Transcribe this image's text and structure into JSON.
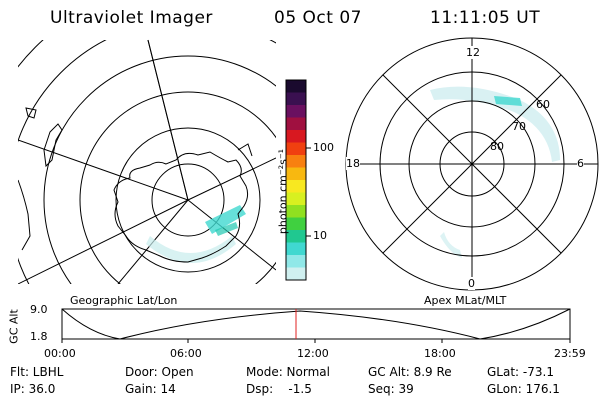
{
  "header": {
    "instrument": "Ultraviolet Imager",
    "date": "05 Oct 07",
    "time": "11:11:05 UT"
  },
  "left_panel": {
    "label": "Geographic Lat/Lon"
  },
  "right_panel": {
    "label": "Apex MLat/MLT",
    "mlt_labels": [
      "12",
      "18",
      "6",
      "0"
    ],
    "mlat_labels": [
      "60",
      "70",
      "80"
    ]
  },
  "colorbar": {
    "label": "photon cm⁻²s⁻¹",
    "ticks": [
      "100",
      "10"
    ],
    "colors_top_to_bottom": [
      "#1a0a2e",
      "#3a1050",
      "#6a1060",
      "#a01040",
      "#d81820",
      "#f04010",
      "#f88010",
      "#f8b810",
      "#f8e820",
      "#d8f020",
      "#90e020",
      "#40d040",
      "#20c890",
      "#40d8d0",
      "#90e8e8",
      "#d0f0f0"
    ]
  },
  "altitude_plot": {
    "y_label": "GC Alt",
    "y_ticks": [
      "9.0",
      "1.8"
    ],
    "x_ticks": [
      "00:00",
      "06:00",
      "12:00",
      "18:00",
      "23:59"
    ],
    "marker_color": "#e02020"
  },
  "status": {
    "filter": "Flt: LBHL",
    "ip": "IP: 36.0",
    "door": "Door: Open",
    "gain": "Gain: 14",
    "mode": "Mode: Normal",
    "dsp": "Dsp:    -1.5",
    "gc_alt": "GC Alt: 8.9 Re",
    "seq": "Seq: 39",
    "glat": "GLat: -73.1",
    "glon": "GLon: 176.1"
  }
}
